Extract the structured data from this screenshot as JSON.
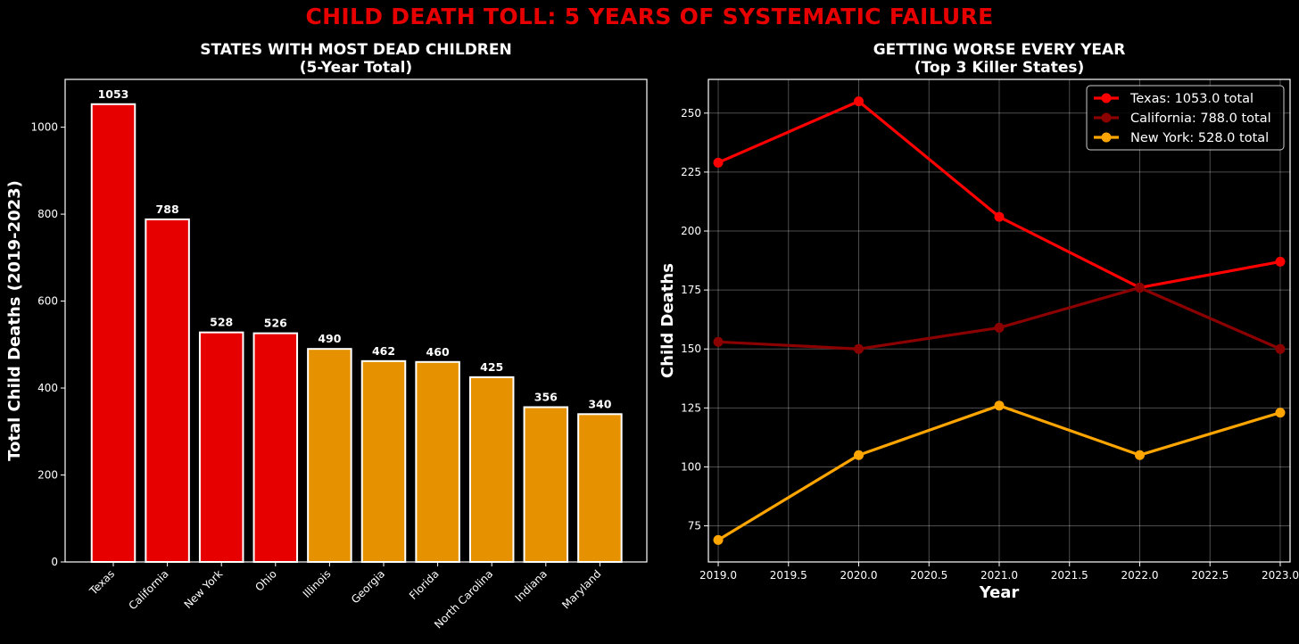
{
  "suptitle": "CHILD DEATH TOLL: 5 YEARS OF SYSTEMATIC FAILURE",
  "chart_data": [
    {
      "type": "bar",
      "title": "STATES WITH MOST DEAD CHILDREN",
      "subtitle": "(5-Year Total)",
      "xlabel": "",
      "ylabel": "Total Child Deaths (2019-2023)",
      "categories": [
        "Texas",
        "California",
        "New York",
        "Ohio",
        "Illinois",
        "Georgia",
        "Florida",
        "North Carolina",
        "Indiana",
        "Maryland"
      ],
      "values": [
        1053,
        788,
        528,
        526,
        490,
        462,
        460,
        425,
        356,
        340
      ],
      "colors": [
        "#e60000",
        "#e60000",
        "#e60000",
        "#e60000",
        "#e69100",
        "#e69100",
        "#e69100",
        "#e69100",
        "#e69100",
        "#e69100"
      ],
      "edge_color": "#ffffff",
      "ylim": [
        0,
        1110
      ],
      "yticks": [
        0,
        200,
        400,
        600,
        800,
        1000
      ],
      "grid": false
    },
    {
      "type": "line",
      "title": "GETTING WORSE EVERY YEAR",
      "subtitle": "(Top 3 Killer States)",
      "xlabel": "Year",
      "ylabel": "Child Deaths",
      "x": [
        2019,
        2020,
        2021,
        2022,
        2023
      ],
      "xticks": [
        "2019.0",
        "2019.5",
        "2020.0",
        "2020.5",
        "2021.0",
        "2021.5",
        "2022.0",
        "2022.5",
        "2023.0"
      ],
      "yticks": [
        75,
        100,
        125,
        150,
        175,
        200,
        225,
        250
      ],
      "xlim": [
        2018.93,
        2023.07
      ],
      "ylim": [
        59.7,
        264.3
      ],
      "grid": true,
      "legend_position": "top-right",
      "series": [
        {
          "name": "Texas: 1053.0 total",
          "color": "#ff0000",
          "values": [
            229,
            255,
            206,
            176,
            187
          ]
        },
        {
          "name": "California: 788.0 total",
          "color": "#8b0000",
          "values": [
            153,
            150,
            159,
            176,
            150
          ]
        },
        {
          "name": "New York: 528.0 total",
          "color": "#ffa500",
          "values": [
            69,
            105,
            126,
            105,
            123
          ]
        }
      ]
    }
  ]
}
